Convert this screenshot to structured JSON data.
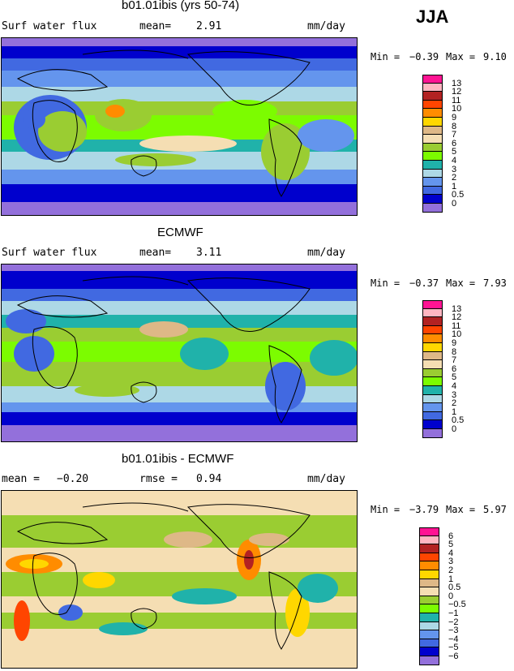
{
  "season": "JJA",
  "panels": [
    {
      "id": "model",
      "title": "b01.01ibis (yrs 50-74)",
      "left_label": "Surf water flux",
      "mid_label": "mean=",
      "mid_value": "2.91",
      "units": "mm/day",
      "min_label": "Min =",
      "min_value": "−0.39",
      "max_label": "Max =",
      "max_value": "9.10",
      "legend": {
        "ticks": [
          "13",
          "12",
          "11",
          "10",
          "9",
          "8",
          "7",
          "6",
          "5",
          "4",
          "3",
          "2",
          "1",
          "0.5",
          "0"
        ],
        "colors": [
          "#ff1493",
          "#ffb6c1",
          "#b22222",
          "#ff4500",
          "#ff8c00",
          "#ffd700",
          "#deb887",
          "#f5deb3",
          "#9acd32",
          "#7cfc00",
          "#20b2aa",
          "#add8e6",
          "#6495ed",
          "#4169e1",
          "#0000cd",
          "#9370db"
        ]
      }
    },
    {
      "id": "obs",
      "title": "ECMWF",
      "left_label": "Surf water flux",
      "mid_label": "mean=",
      "mid_value": "3.11",
      "units": "mm/day",
      "min_label": "Min =",
      "min_value": "−0.37",
      "max_label": "Max =",
      "max_value": "7.93",
      "legend": {
        "ticks": [
          "13",
          "12",
          "11",
          "10",
          "9",
          "8",
          "7",
          "6",
          "5",
          "4",
          "3",
          "2",
          "1",
          "0.5",
          "0"
        ],
        "colors": [
          "#ff1493",
          "#ffb6c1",
          "#b22222",
          "#ff4500",
          "#ff8c00",
          "#ffd700",
          "#deb887",
          "#f5deb3",
          "#9acd32",
          "#7cfc00",
          "#20b2aa",
          "#add8e6",
          "#6495ed",
          "#4169e1",
          "#0000cd",
          "#9370db"
        ]
      }
    },
    {
      "id": "diff",
      "title": "b01.01ibis - ECMWF",
      "left_label": "mean =",
      "left_value": "−0.20",
      "mid_label": "rmse =",
      "mid_value": "0.94",
      "units": "mm/day",
      "min_label": "Min =",
      "min_value": "−3.79",
      "max_label": "Max =",
      "max_value": "5.97",
      "legend": {
        "ticks": [
          "6",
          "5",
          "4",
          "3",
          "2",
          "1",
          "0.5",
          "0",
          "−0.5",
          "−1",
          "−2",
          "−3",
          "−4",
          "−5",
          "−6"
        ],
        "colors": [
          "#ff1493",
          "#ffb6c1",
          "#b22222",
          "#ff4500",
          "#ff8c00",
          "#ffd700",
          "#deb887",
          "#f5deb3",
          "#9acd32",
          "#7cfc00",
          "#20b2aa",
          "#add8e6",
          "#6495ed",
          "#4169e1",
          "#0000cd",
          "#9370db"
        ]
      }
    }
  ]
}
